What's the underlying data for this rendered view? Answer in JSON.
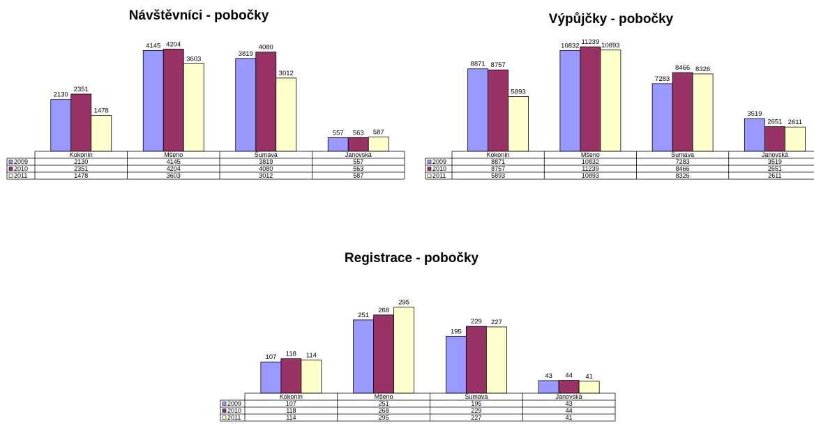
{
  "chart_data": [
    {
      "type": "bar",
      "title": "Návštěvníci - pobočky",
      "categories": [
        "Kokonín",
        "Mšeno",
        "Šumava",
        "Janovská"
      ],
      "series": [
        {
          "name": "2009",
          "values": [
            2130,
            4145,
            3819,
            557
          ]
        },
        {
          "name": "2010",
          "values": [
            2351,
            4204,
            4080,
            563
          ]
        },
        {
          "name": "2011",
          "values": [
            1478,
            3603,
            3012,
            587
          ]
        }
      ],
      "ylim": [
        0,
        4500
      ],
      "grid": false,
      "legend": "data-table-left"
    },
    {
      "type": "bar",
      "title": "Výpůjčky - pobočky",
      "categories": [
        "Kokonín",
        "Mšeno",
        "Šumava",
        "Janovská"
      ],
      "series": [
        {
          "name": "2009",
          "values": [
            8871,
            10832,
            7283,
            3519
          ]
        },
        {
          "name": "2010",
          "values": [
            8757,
            11239,
            8466,
            2651
          ]
        },
        {
          "name": "2011",
          "values": [
            5893,
            10893,
            8326,
            2611
          ]
        }
      ],
      "ylim": [
        0,
        12000
      ],
      "grid": false,
      "legend": "data-table-left"
    },
    {
      "type": "bar",
      "title": "Registrace - pobočky",
      "categories": [
        "Kokonín",
        "Mšeno",
        "Šumava",
        "Janovská"
      ],
      "series": [
        {
          "name": "2009",
          "values": [
            107,
            251,
            195,
            43
          ]
        },
        {
          "name": "2010",
          "values": [
            118,
            268,
            229,
            44
          ]
        },
        {
          "name": "2011",
          "values": [
            114,
            295,
            227,
            41
          ]
        }
      ],
      "ylim": [
        0,
        320
      ],
      "grid": false,
      "legend": "data-table-left"
    }
  ],
  "colors": {
    "2009": "#9999ff",
    "2010": "#993366",
    "2011": "#ffffcc"
  }
}
